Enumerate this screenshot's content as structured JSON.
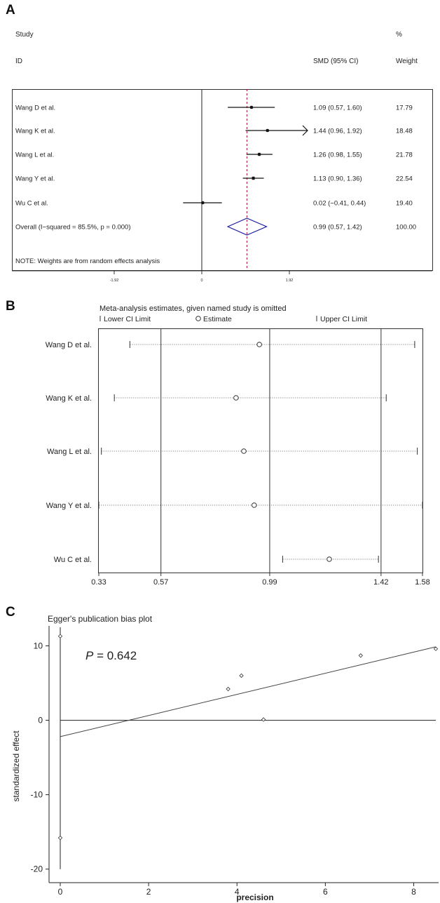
{
  "panels": {
    "a": "A",
    "b": "B",
    "c": "C"
  },
  "chart_data": [
    {
      "type": "forest",
      "panel": "A",
      "header": {
        "study_label": "Study",
        "id_label": "ID",
        "effect_label": "SMD (95% CI)",
        "pct_label": "%",
        "weight_label": "Weight"
      },
      "rows": [
        {
          "study": "Wang D et al.",
          "est": 1.09,
          "lo": 0.57,
          "hi": 1.6,
          "ci_text": "1.09 (0.57, 1.60)",
          "weight": "17.79",
          "arrow": false
        },
        {
          "study": "Wang K et al.",
          "est": 1.44,
          "lo": 0.96,
          "hi": 1.92,
          "ci_text": "1.44 (0.96, 1.92)",
          "weight": "18.48",
          "arrow": true
        },
        {
          "study": "Wang L et al.",
          "est": 1.26,
          "lo": 0.98,
          "hi": 1.55,
          "ci_text": "1.26 (0.98, 1.55)",
          "weight": "21.78",
          "arrow": false
        },
        {
          "study": "Wang Y et al.",
          "est": 1.13,
          "lo": 0.9,
          "hi": 1.36,
          "ci_text": "1.13 (0.90, 1.36)",
          "weight": "22.54",
          "arrow": false
        },
        {
          "study": "Wu C et al.",
          "est": 0.02,
          "lo": -0.41,
          "hi": 0.44,
          "ci_text": "0.02 (−0.41, 0.44)",
          "weight": "19.40",
          "arrow": false
        }
      ],
      "overall": {
        "label": "Overall  (I−squared = 85.5%, p = 0.000)",
        "est": 0.99,
        "lo": 0.57,
        "hi": 1.42,
        "ci_text": "0.99 (0.57, 1.42)",
        "weight": "100.00"
      },
      "note": "NOTE: Weights are from random effects analysis",
      "xlim": [
        -1.92,
        1.92
      ],
      "ticks": [
        {
          "v": -1.92,
          "label": "-1.92"
        },
        {
          "v": 0,
          "label": "0"
        },
        {
          "v": 1.92,
          "label": "1.92"
        }
      ],
      "colors": {
        "overall_diamond": "#1a1aa0",
        "reference_line": "#b01030"
      }
    },
    {
      "type": "scatter",
      "panel": "B",
      "title": "Meta-analysis estimates, given named study is omitted",
      "legend": {
        "lower": "Lower CI Limit",
        "estimate": "Estimate",
        "upper": "Upper CI Limit"
      },
      "rows": [
        {
          "study": "Wang D et al.",
          "lower": 0.45,
          "est": 0.95,
          "upper": 1.55
        },
        {
          "study": "Wang K et al.",
          "lower": 0.39,
          "est": 0.86,
          "upper": 1.44
        },
        {
          "study": "Wang L et al.",
          "lower": 0.34,
          "est": 0.89,
          "upper": 1.56
        },
        {
          "study": "Wang Y et al.",
          "lower": 0.33,
          "est": 0.93,
          "upper": 1.58
        },
        {
          "study": "Wu C et al.",
          "lower": 1.04,
          "est": 1.22,
          "upper": 1.41
        }
      ],
      "xlim": [
        0.33,
        1.58
      ],
      "ticks": [
        {
          "v": 0.33,
          "label": "0.33"
        },
        {
          "v": 0.57,
          "label": "0.57"
        },
        {
          "v": 0.99,
          "label": "0.99"
        },
        {
          "v": 1.42,
          "label": "1.42"
        },
        {
          "v": 1.58,
          "label": "1.58"
        }
      ],
      "ref_lines": [
        0.57,
        0.99,
        1.42
      ]
    },
    {
      "type": "scatter",
      "panel": "C",
      "title": "Egger's publication bias plot",
      "annotation_p": "P",
      "annotation_val": " = 0.642",
      "xlabel": "precision",
      "ylabel": "standardized effect",
      "xlim": [
        0,
        8.5
      ],
      "ylim": [
        -20.5,
        12.5
      ],
      "xticks": [
        0,
        2,
        4,
        6,
        8
      ],
      "yticks": [
        10,
        0,
        -10,
        -20
      ],
      "points": [
        {
          "x": 0.0,
          "y": 11.3
        },
        {
          "x": 0.0,
          "y": -15.8
        },
        {
          "x": 3.8,
          "y": 4.2
        },
        {
          "x": 4.1,
          "y": 6.0
        },
        {
          "x": 4.6,
          "y": 0.1
        },
        {
          "x": 6.8,
          "y": 8.7
        },
        {
          "x": 8.5,
          "y": 9.6
        }
      ],
      "regression": {
        "intercept": -2.2,
        "slope": 1.42
      },
      "intercept_ci": [
        -20.0,
        12.5
      ]
    }
  ]
}
